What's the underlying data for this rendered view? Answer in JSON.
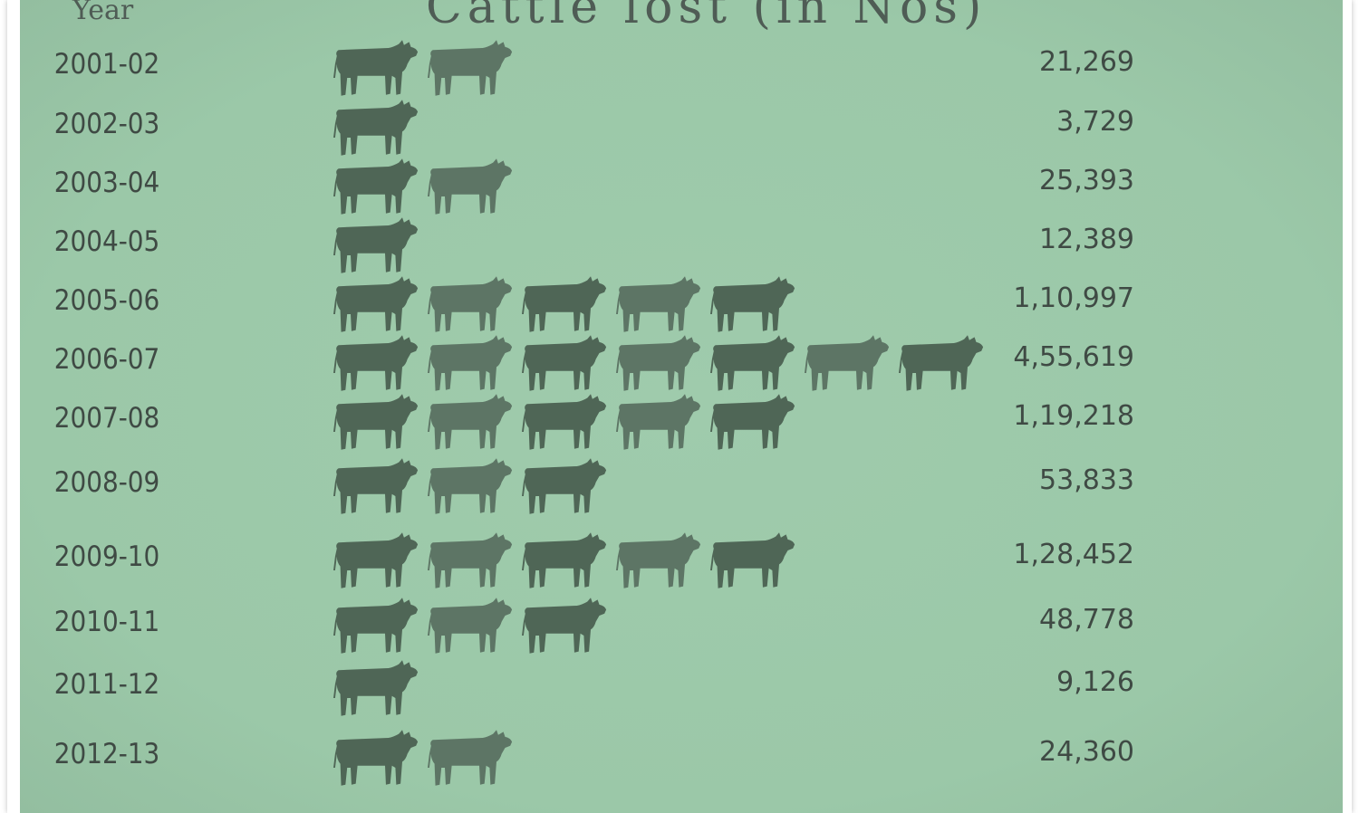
{
  "header": {
    "year_column": "Year",
    "title": "Cattle lost (in Nos)"
  },
  "colors": {
    "panel": "#9bc8a8",
    "icon": "#4f6656",
    "icon_light": "#5d7565",
    "text": "#3f4a44"
  },
  "chart_data": {
    "type": "pictograph",
    "title": "Cattle lost (in Nos)",
    "xlabel": "",
    "ylabel": "Year",
    "icon": "cow-icon",
    "categories": [
      "2001-02",
      "2002-03",
      "2003-04",
      "2004-05",
      "2005-06",
      "2006-07",
      "2007-08",
      "2008-09",
      "2009-10",
      "2010-11",
      "2011-12",
      "2012-13"
    ],
    "value_labels": [
      "21,269",
      "3,729",
      "25,393",
      "12,389",
      "1,10,997",
      "4,55,619",
      "1,19,218",
      "53,833",
      "1,28,452",
      "48,778",
      "9,126",
      "24,360"
    ],
    "values": [
      21269,
      3729,
      25393,
      12389,
      110997,
      455619,
      119218,
      53833,
      128452,
      48778,
      9126,
      24360
    ],
    "icon_counts": [
      2,
      1,
      2,
      1,
      5,
      7,
      5,
      3,
      5,
      3,
      1,
      2
    ]
  }
}
